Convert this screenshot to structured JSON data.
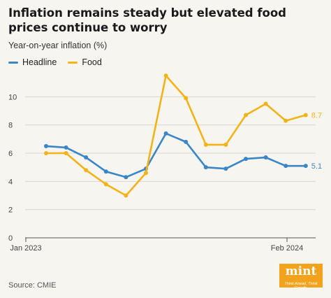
{
  "chart_data": {
    "type": "line",
    "title": "Inflation remains steady but elevated food prices continue to worry",
    "subtitle": "Year-on-year inflation (%)",
    "x_tick_labels": [
      "Jan 2023",
      "Feb 2024"
    ],
    "ylim": [
      0,
      12
    ],
    "y_ticks": [
      0,
      2,
      4,
      6,
      8,
      10
    ],
    "grid": true,
    "legend_position": "top-left",
    "x": [
      "Jan 2023",
      "Feb 2023",
      "Mar 2023",
      "Apr 2023",
      "May 2023",
      "Jun 2023",
      "Jul 2023",
      "Aug 2023",
      "Sep 2023",
      "Oct 2023",
      "Nov 2023",
      "Dec 2023",
      "Jan 2024",
      "Feb 2024"
    ],
    "series": [
      {
        "name": "Headline",
        "color": "#3b86c6",
        "values": [
          6.5,
          6.4,
          5.7,
          4.7,
          4.3,
          4.9,
          7.4,
          6.8,
          5.0,
          4.9,
          5.6,
          5.7,
          5.1,
          5.1
        ],
        "end_label": "5.1"
      },
      {
        "name": "Food",
        "color": "#f2b318",
        "values": [
          6.0,
          6.0,
          4.8,
          3.8,
          3.0,
          4.6,
          11.5,
          9.9,
          6.6,
          6.6,
          8.7,
          9.5,
          8.3,
          8.7
        ],
        "end_label": "8.7"
      }
    ]
  },
  "source": "Source: CMIE",
  "logo": {
    "word": "mint",
    "tagline": "Think Ahead. Think Growth."
  }
}
